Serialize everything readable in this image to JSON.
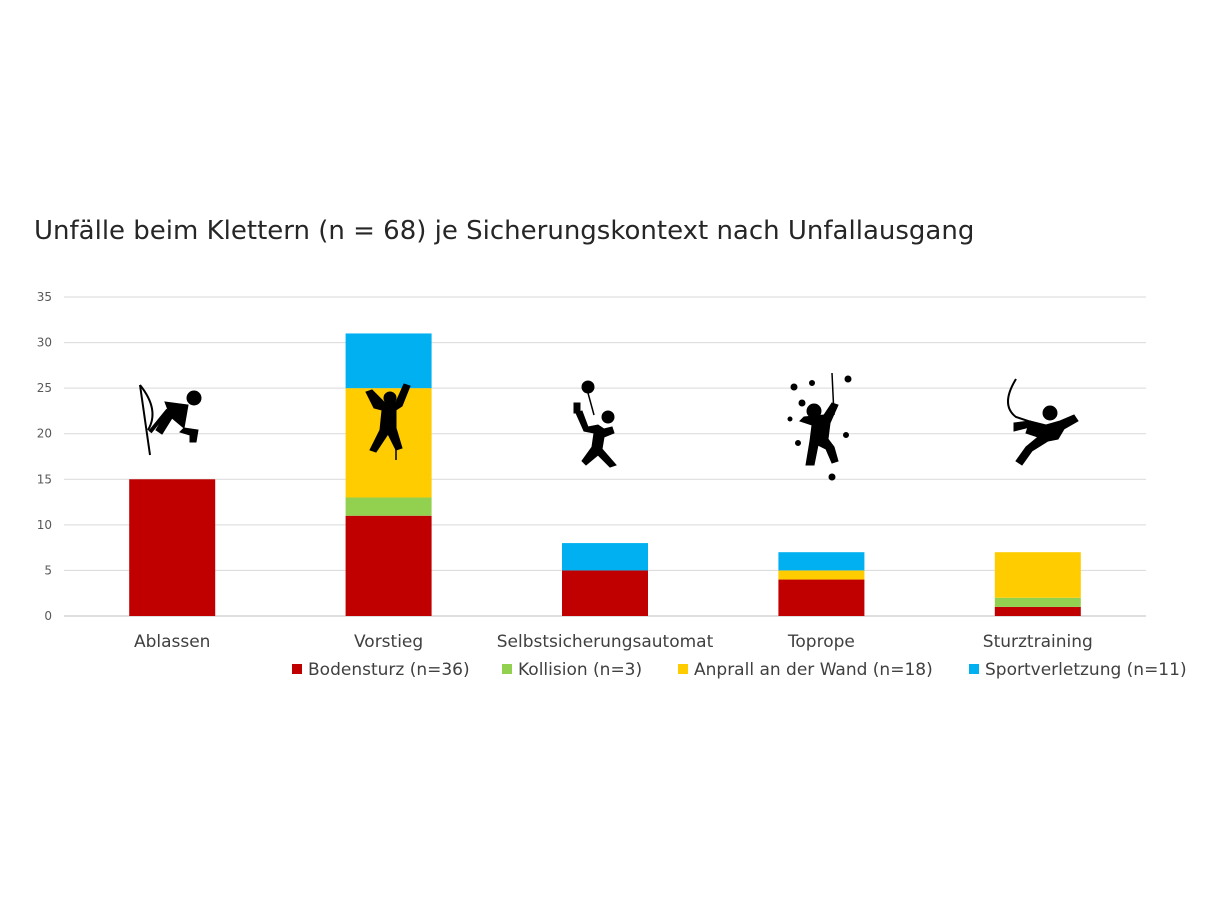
{
  "chart_data": {
    "type": "bar",
    "stacked": true,
    "title": "Unfälle beim Klettern (n = 68) je Sicherungskontext nach Unfallausgang",
    "categories": [
      "Ablassen",
      "Vorstieg",
      "Selbstsicherungsautomat",
      "Toprope",
      "Sturztraining"
    ],
    "series": [
      {
        "name": "Bodensturz (n=36)",
        "color": "#c00000",
        "values": [
          15,
          11,
          5,
          4,
          1
        ]
      },
      {
        "name": "Kollision (n=3)",
        "color": "#92d050",
        "values": [
          0,
          2,
          0,
          0,
          1
        ]
      },
      {
        "name": "Anprall an der Wand (n=18)",
        "color": "#ffcc00",
        "values": [
          0,
          12,
          0,
          1,
          5
        ]
      },
      {
        "name": "Sportverletzung (n=11)",
        "color": "#00b0f0",
        "values": [
          0,
          6,
          3,
          2,
          0
        ]
      }
    ],
    "ylim": [
      0,
      35
    ],
    "yticks": [
      0,
      5,
      10,
      15,
      20,
      25,
      30,
      35
    ],
    "grid": true,
    "legend": "bottom",
    "icons": [
      "lowering-climber-icon",
      "lead-climber-icon",
      "auto-belay-climber-icon",
      "toprope-climber-icon",
      "fall-training-climber-icon"
    ]
  }
}
